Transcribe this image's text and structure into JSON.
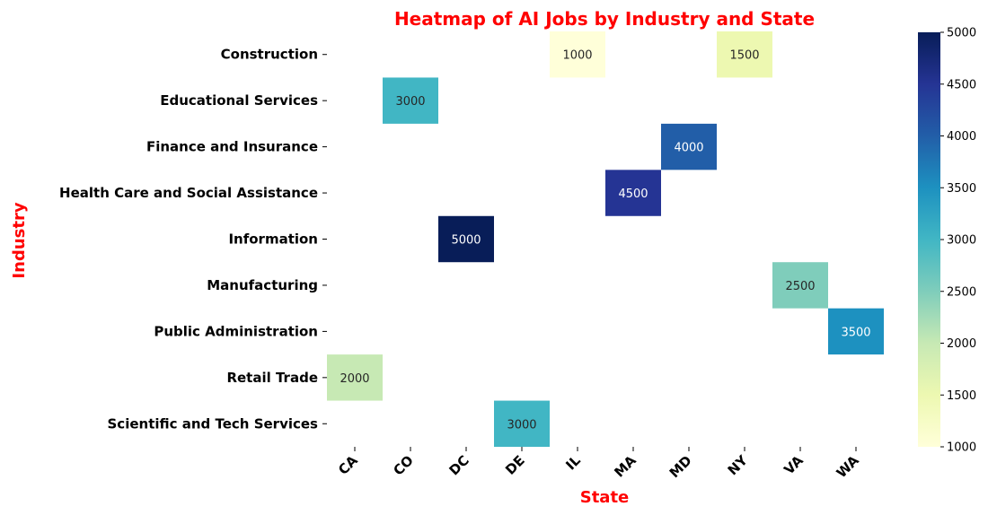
{
  "chart_data": {
    "type": "heatmap",
    "title": "Heatmap of AI Jobs by Industry and State",
    "xlabel": "State",
    "ylabel": "Industry",
    "x_categories": [
      "CA",
      "CO",
      "DC",
      "DE",
      "IL",
      "MA",
      "MD",
      "NY",
      "VA",
      "WA"
    ],
    "y_categories": [
      "Construction",
      "Educational Services",
      "Finance and Insurance",
      "Health Care and Social Assistance",
      "Information",
      "Manufacturing",
      "Public Administration",
      "Retail Trade",
      "Scientific and Tech Services"
    ],
    "cells": [
      {
        "industry": "Construction",
        "state": "IL",
        "value": 1000
      },
      {
        "industry": "Construction",
        "state": "NY",
        "value": 1500
      },
      {
        "industry": "Educational Services",
        "state": "CO",
        "value": 3000
      },
      {
        "industry": "Finance and Insurance",
        "state": "MD",
        "value": 4000
      },
      {
        "industry": "Health Care and Social Assistance",
        "state": "MA",
        "value": 4500
      },
      {
        "industry": "Information",
        "state": "DC",
        "value": 5000
      },
      {
        "industry": "Manufacturing",
        "state": "VA",
        "value": 2500
      },
      {
        "industry": "Public Administration",
        "state": "WA",
        "value": 3500
      },
      {
        "industry": "Retail Trade",
        "state": "CA",
        "value": 2000
      },
      {
        "industry": "Scientific and Tech Services",
        "state": "DE",
        "value": 3000
      }
    ],
    "value_range": [
      1000,
      5000
    ],
    "colorbar_ticks": [
      1000,
      1500,
      2000,
      2500,
      3000,
      3500,
      4000,
      4500,
      5000
    ],
    "colormap": "YlGnBu",
    "annotations": true,
    "grid": false,
    "colors": {
      "title": "#ff0000",
      "axis_label": "#ff0000",
      "tick_label": "#000000"
    }
  }
}
